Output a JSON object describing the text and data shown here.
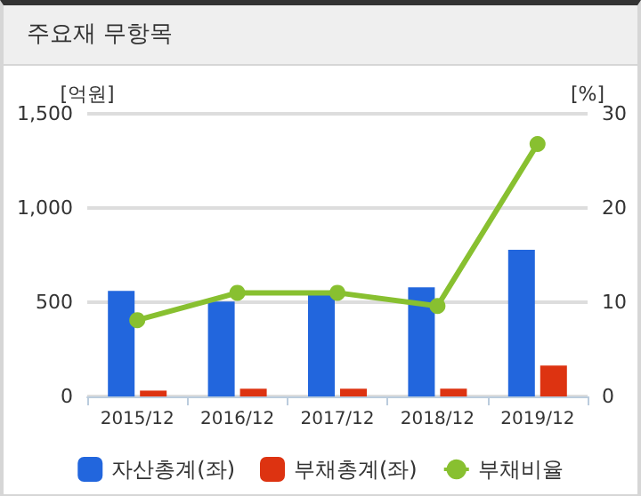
{
  "chart_data": {
    "type": "bar",
    "title": "주요재 무항목",
    "ylabel": "[억원]",
    "y2label": "[%]",
    "categories": [
      "2015/12",
      "2016/12",
      "2017/12",
      "2018/12",
      "2019/12"
    ],
    "series": [
      {
        "name": "자산총계(좌)",
        "color": "#2266dd",
        "values": [
          560,
          503,
          550,
          579,
          778
        ]
      },
      {
        "name": "부채총계(좌)",
        "color": "#dd3311",
        "values": [
          31,
          41,
          41,
          41,
          164
        ]
      },
      {
        "name": "부채비율",
        "type": "line",
        "axis": "y2",
        "color": "#88c030",
        "values": [
          8.1,
          11.0,
          11.0,
          9.6,
          26.8
        ]
      }
    ],
    "ylim": [
      0,
      1500
    ],
    "yticks": [
      0,
      500,
      {
        "value": 1000,
        "label": "1,000"
      },
      {
        "value": 1500,
        "label": "1,500"
      }
    ],
    "y2lim": [
      0,
      30
    ],
    "y2ticks": [
      0,
      10,
      20,
      30
    ],
    "grid": "y",
    "legend": "bottom",
    "marker": "circle"
  }
}
